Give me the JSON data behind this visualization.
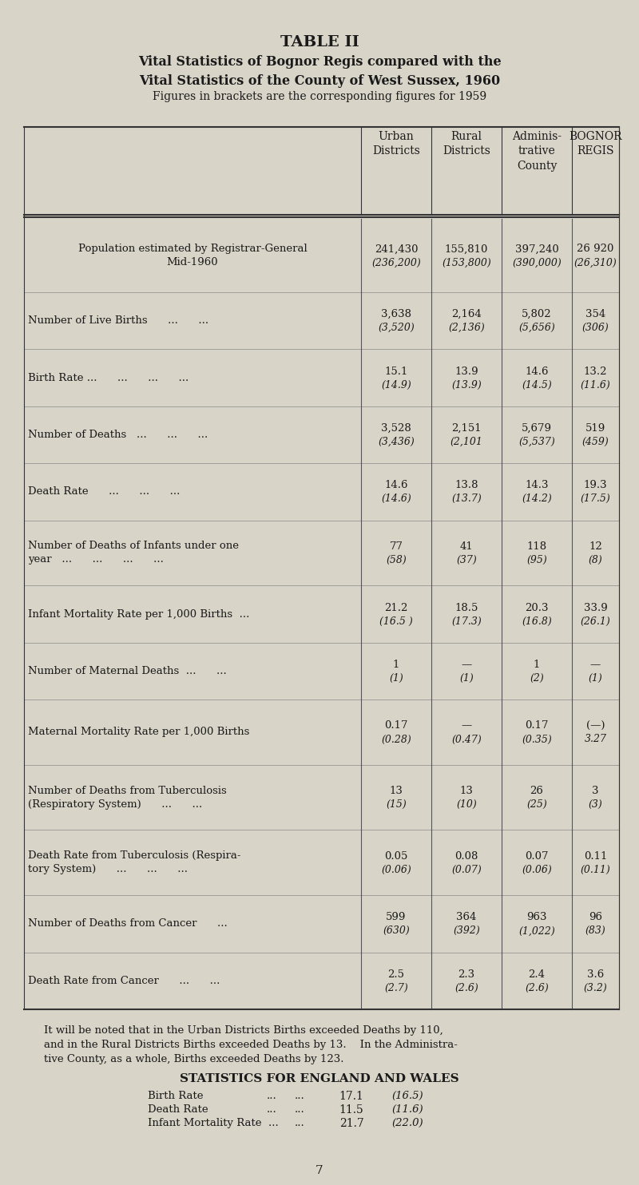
{
  "title1": "TABLE II",
  "title2": "Vital Statistics of Bognor Regis compared with the\nVital Statistics of the County of West Sussex, 1960",
  "subtitle": "Figures in brackets are the corresponding figures for 1959",
  "bg_color": "#d8d4c8",
  "col_headers": [
    [
      "Urban\nDistricts",
      "Rural\nDistricts",
      "Adminis-\ntrative\nCounty",
      "BOGNOR\nREGIS"
    ]
  ],
  "rows": [
    {
      "label": "Population estimated by Registrar-General\nMid-1960",
      "label_center": true,
      "values": [
        "241,430\n(236,200)",
        "155,810\n(153,800)",
        "397,240\n(390,000)",
        "26 920\n(26,310)"
      ]
    },
    {
      "label": "Number of Live Births      ...      ...",
      "values": [
        "3,638\n(3,520)",
        "2,164\n(2,136)",
        "5,802\n(5,656)",
        "354\n(306)"
      ]
    },
    {
      "label": "Birth Rate ...      ...      ...      ...",
      "values": [
        "15.1\n(14.9)",
        "13.9\n(13.9)",
        "14.6\n(14.5)",
        "13.2\n(11.6)"
      ]
    },
    {
      "label": "Number of Deaths   ...      ...      ...",
      "values": [
        "3,528\n(3,436)",
        "2,151\n(2,101",
        "5,679\n(5,537)",
        "519\n(459)"
      ]
    },
    {
      "label": "Death Rate      ...      ...      ...",
      "values": [
        "14.6\n(14.6)",
        "13.8\n(13.7)",
        "14.3\n(14.2)",
        "19.3\n(17.5)"
      ]
    },
    {
      "label": "Number of Deaths of Infants under one\nyear   ...      ...      ...      ...",
      "values": [
        "77\n(58)",
        "41\n(37)",
        "118\n(95)",
        "12\n(8)"
      ]
    },
    {
      "label": "Infant Mortality Rate per 1,000 Births  ...",
      "values": [
        "21.2\n(16.5 )",
        "18.5\n(17.3)",
        "20.3\n(16.8)",
        "33.9\n(26.1)"
      ]
    },
    {
      "label": "Number of Maternal Deaths  ...      ...",
      "values": [
        "1\n(1)",
        "—\n(1)",
        "1\n(2)",
        "—\n(1)"
      ]
    },
    {
      "label": "Maternal Mortality Rate per 1,000 Births",
      "values": [
        "0.17\n(0.28)",
        "—\n(0.47)",
        "0.17\n(0.35)",
        "(—)\n3.27"
      ]
    },
    {
      "label": "Number of Deaths from Tuberculosis\n(Respiratory System)      ...      ...",
      "values": [
        "13\n(15)",
        "13\n(10)",
        "26\n(25)",
        "3\n(3)"
      ]
    },
    {
      "label": "Death Rate from Tuberculosis (Respira-\ntory System)      ...      ...      ...",
      "values": [
        "0.05\n(0.06)",
        "0.08\n(0.07)",
        "0.07\n(0.06)",
        "0.11\n(0.11)"
      ]
    },
    {
      "label": "Number of Deaths from Cancer      ...",
      "values": [
        "599\n(630)",
        "364\n(392)",
        "963\n(1,022)",
        "96\n(83)"
      ]
    },
    {
      "label": "Death Rate from Cancer      ...      ...",
      "values": [
        "2.5\n(2.7)",
        "2.3\n(2.6)",
        "2.4\n(2.6)",
        "3.6\n(3.2)"
      ]
    }
  ],
  "footer_text": "It will be noted that in the Urban Districts Births exceeded Deaths by 110,\nand in the Rural Districts Births exceeded Deaths by 13.    In the Administra-\ntive County, as a whole, Births exceeded Deaths by 123.",
  "stats_title": "STATISTICS FOR ENGLAND AND WALES",
  "stats_rows": [
    [
      "Birth Rate",
      "...",
      "...",
      "17.1",
      "(16.5)"
    ],
    [
      "Death Rate",
      "...",
      "...",
      "11.5",
      "(11.6)"
    ],
    [
      "Infant Mortality Rate  ...",
      "...",
      "...",
      "21.7",
      "(22.0)"
    ]
  ],
  "page_number": "7"
}
